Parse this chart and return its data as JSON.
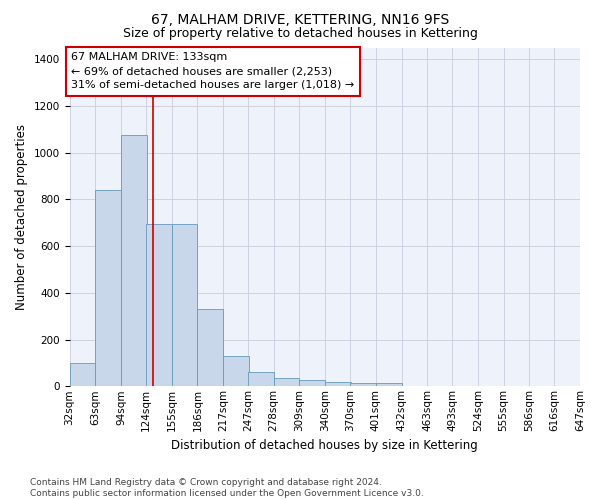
{
  "title": "67, MALHAM DRIVE, KETTERING, NN16 9FS",
  "subtitle": "Size of property relative to detached houses in Kettering",
  "xlabel": "Distribution of detached houses by size in Kettering",
  "ylabel": "Number of detached properties",
  "bar_color": "#c8d8ea",
  "bar_edge_color": "#6699bb",
  "grid_color": "#ccccdd",
  "background_color": "#eef2fb",
  "property_line_value": 133,
  "property_line_color": "#cc0000",
  "annotation_line1": "67 MALHAM DRIVE: 133sqm",
  "annotation_line2": "← 69% of detached houses are smaller (2,253)",
  "annotation_line3": "31% of semi-detached houses are larger (1,018) →",
  "annotation_box_color": "#cc0000",
  "bin_edges": [
    32,
    63,
    94,
    124,
    155,
    186,
    217,
    247,
    278,
    309,
    340,
    370,
    401,
    432,
    463,
    493,
    524,
    555,
    586,
    616,
    647
  ],
  "bin_labels": [
    "32sqm",
    "63sqm",
    "94sqm",
    "124sqm",
    "155sqm",
    "186sqm",
    "217sqm",
    "247sqm",
    "278sqm",
    "309sqm",
    "340sqm",
    "370sqm",
    "401sqm",
    "432sqm",
    "463sqm",
    "493sqm",
    "524sqm",
    "555sqm",
    "586sqm",
    "616sqm",
    "647sqm"
  ],
  "bar_heights": [
    98,
    840,
    1075,
    695,
    695,
    330,
    128,
    60,
    35,
    28,
    18,
    15,
    13,
    0,
    0,
    0,
    0,
    0,
    0,
    0
  ],
  "ylim": [
    0,
    1450
  ],
  "yticks": [
    0,
    200,
    400,
    600,
    800,
    1000,
    1200,
    1400
  ],
  "footnote": "Contains HM Land Registry data © Crown copyright and database right 2024.\nContains public sector information licensed under the Open Government Licence v3.0.",
  "title_fontsize": 10,
  "subtitle_fontsize": 9,
  "annotation_fontsize": 8,
  "tick_fontsize": 7.5,
  "ylabel_fontsize": 8.5,
  "xlabel_fontsize": 8.5,
  "footnote_fontsize": 6.5
}
